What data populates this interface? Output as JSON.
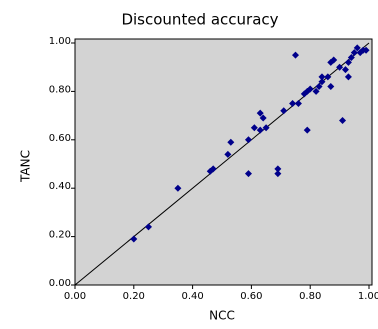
{
  "chart_data": {
    "type": "scatter",
    "title": "Discounted accuracy",
    "x_label": "NCC",
    "y_label": "TANC",
    "color": "#00008b",
    "background": "#d3d3d3",
    "diagonal": true,
    "xlim": [
      0,
      1
    ],
    "ylim": [
      0,
      1
    ],
    "xticks": [
      {
        "value": 0,
        "label": "0.00"
      },
      {
        "value": 0.2,
        "label": "0.20"
      },
      {
        "value": 0.4,
        "label": "0.40"
      },
      {
        "value": 0.6,
        "label": "0.60"
      },
      {
        "value": 0.8,
        "label": "0.80"
      },
      {
        "value": 1,
        "label": "1.00"
      }
    ],
    "yticks": [
      {
        "value": 0,
        "label": "0.00"
      },
      {
        "value": 0.2,
        "label": "0.20"
      },
      {
        "value": 0.4,
        "label": "0.40"
      },
      {
        "value": 0.6,
        "label": "0.60"
      },
      {
        "value": 0.8,
        "label": "0.80"
      },
      {
        "value": 1,
        "label": "1.00"
      }
    ],
    "x": [
      0.2,
      0.25,
      0.35,
      0.46,
      0.47,
      0.52,
      0.53,
      0.59,
      0.59,
      0.61,
      0.63,
      0.63,
      0.64,
      0.65,
      0.69,
      0.69,
      0.71,
      0.74,
      0.75,
      0.76,
      0.78,
      0.79,
      0.79,
      0.8,
      0.82,
      0.83,
      0.84,
      0.84,
      0.86,
      0.87,
      0.87,
      0.88,
      0.9,
      0.91,
      0.92,
      0.93,
      0.93,
      0.94,
      0.95,
      0.96,
      0.97,
      0.98,
      0.99
    ],
    "values": [
      0.19,
      0.24,
      0.4,
      0.47,
      0.48,
      0.54,
      0.59,
      0.46,
      0.6,
      0.65,
      0.71,
      0.64,
      0.69,
      0.65,
      0.46,
      0.48,
      0.72,
      0.75,
      0.95,
      0.75,
      0.79,
      0.8,
      0.64,
      0.81,
      0.8,
      0.82,
      0.84,
      0.86,
      0.86,
      0.82,
      0.92,
      0.93,
      0.9,
      0.68,
      0.89,
      0.86,
      0.92,
      0.94,
      0.96,
      0.98,
      0.96,
      0.97,
      0.97
    ]
  }
}
